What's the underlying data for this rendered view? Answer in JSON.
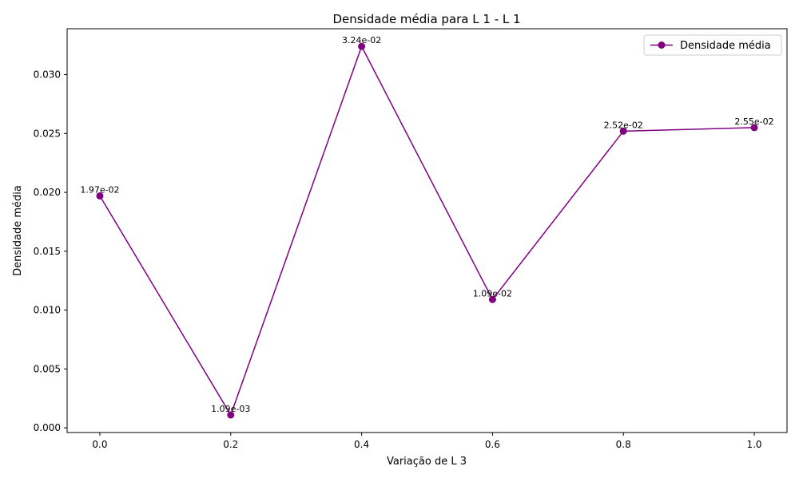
{
  "chart_data": {
    "type": "line",
    "title": "Densidade média para L 1 - L 1",
    "xlabel": "Variação de L 3",
    "ylabel": "Densidade média",
    "x": [
      0.0,
      0.2,
      0.4,
      0.6,
      0.8,
      1.0
    ],
    "series": [
      {
        "name": "Densidade média",
        "color": "#800080",
        "marker": "circle",
        "values": [
          0.0197,
          0.00109,
          0.0324,
          0.0109,
          0.0252,
          0.0255
        ],
        "labels": [
          "1.97e-02",
          "1.09e-03",
          "3.24e-02",
          "1.09e-02",
          "2.52e-02",
          "2.55e-02"
        ]
      }
    ],
    "xlim": [
      -0.05,
      1.05
    ],
    "ylim": [
      -0.0004,
      0.0339
    ],
    "xticks": [
      "0.0",
      "0.2",
      "0.4",
      "0.6",
      "0.8",
      "1.0"
    ],
    "yticks": [
      "0.000",
      "0.005",
      "0.010",
      "0.015",
      "0.020",
      "0.025",
      "0.030"
    ],
    "grid": false,
    "legend_position": "top-right"
  }
}
